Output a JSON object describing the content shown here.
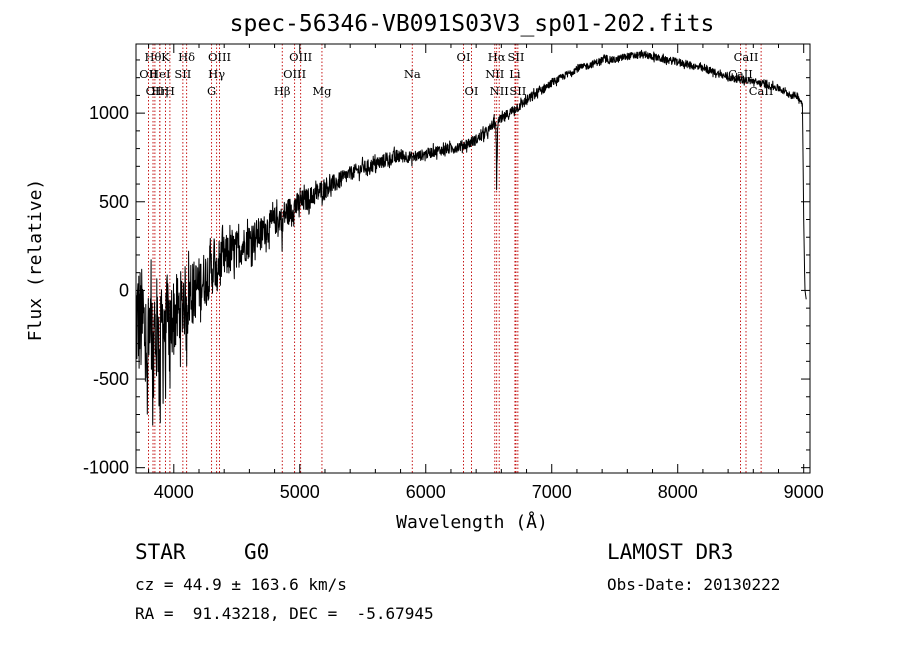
{
  "chart_data": {
    "type": "line",
    "title": "spec-56346-VB091S03V3_sp01-202.fits",
    "xlabel": "Wavelength (Å)",
    "ylabel": "Flux (relative)",
    "xlim": [
      3700,
      9050
    ],
    "ylim": [
      -1030,
      1390
    ],
    "xticks": [
      4000,
      5000,
      6000,
      7000,
      8000,
      9000
    ],
    "yticks": [
      -1000,
      -500,
      0,
      500,
      1000
    ],
    "spectrum_anchors": {
      "x": [
        3700,
        3750,
        3800,
        3850,
        3900,
        3950,
        4000,
        4050,
        4100,
        4200,
        4300,
        4400,
        4500,
        4600,
        4700,
        4800,
        4900,
        5000,
        5100,
        5200,
        5300,
        5400,
        5500,
        5600,
        5700,
        5800,
        5900,
        6000,
        6100,
        6200,
        6300,
        6400,
        6500,
        6550,
        6600,
        6700,
        6800,
        6900,
        7000,
        7100,
        7200,
        7300,
        7400,
        7500,
        7600,
        7700,
        7800,
        7900,
        8000,
        8100,
        8200,
        8300,
        8400,
        8500,
        8600,
        8700,
        8800,
        8900,
        8950,
        8990,
        9000,
        9010,
        9020
      ],
      "y": [
        -150,
        -200,
        -300,
        -250,
        -200,
        -160,
        -150,
        -100,
        -50,
        30,
        120,
        180,
        230,
        280,
        330,
        390,
        440,
        490,
        530,
        580,
        610,
        660,
        690,
        710,
        740,
        760,
        750,
        770,
        790,
        800,
        820,
        850,
        900,
        960,
        960,
        1020,
        1070,
        1120,
        1170,
        1210,
        1250,
        1270,
        1300,
        1300,
        1320,
        1330,
        1320,
        1300,
        1290,
        1270,
        1250,
        1230,
        1200,
        1190,
        1180,
        1160,
        1140,
        1100,
        1100,
        1050,
        400,
        0,
        -50
      ],
      "noise": [
        350,
        330,
        330,
        320,
        320,
        250,
        230,
        210,
        200,
        160,
        150,
        130,
        110,
        100,
        90,
        80,
        80,
        70,
        60,
        60,
        50,
        40,
        40,
        40,
        40,
        40,
        30,
        30,
        30,
        30,
        30,
        30,
        30,
        30,
        30,
        30,
        30,
        30,
        20,
        20,
        20,
        20,
        20,
        20,
        20,
        20,
        20,
        20,
        20,
        20,
        20,
        20,
        20,
        20,
        20,
        20,
        20,
        20,
        20,
        20,
        0,
        0,
        0
      ]
    },
    "spectrum_features": [
      {
        "x": 3790,
        "depth": 500
      },
      {
        "x": 3835,
        "depth": 500
      },
      {
        "x": 3890,
        "depth": 500
      },
      {
        "x": 3933,
        "depth": 300
      },
      {
        "x": 3968,
        "depth": 300
      },
      {
        "x": 4101,
        "depth": 200
      },
      {
        "x": 4340,
        "depth": 150
      },
      {
        "x": 4861,
        "depth": 120
      },
      {
        "x": 6563,
        "depth": 350
      },
      {
        "x": 6550,
        "depth": 100
      }
    ],
    "lines": [
      {
        "x": 3799,
        "label": "OII",
        "row": 2
      },
      {
        "x": 3835,
        "label": "Hθ",
        "row": 1
      },
      {
        "x": 3850,
        "label": "OII",
        "row": 3
      },
      {
        "x": 3889,
        "label": "HeI",
        "row": 2
      },
      {
        "x": 3889,
        "label": "Hη",
        "row": 3
      },
      {
        "x": 3934,
        "label": "K",
        "row": 1
      },
      {
        "x": 3969,
        "label": "H",
        "row": 3
      },
      {
        "x": 4072,
        "label": "SII",
        "row": 2
      },
      {
        "x": 4102,
        "label": "Hδ",
        "row": 1
      },
      {
        "x": 4300,
        "label": "G",
        "row": 3
      },
      {
        "x": 4340,
        "label": "Hγ",
        "row": 2
      },
      {
        "x": 4363,
        "label": "OIII",
        "row": 1
      },
      {
        "x": 4861,
        "label": "Hβ",
        "row": 3
      },
      {
        "x": 4959,
        "label": "OIII",
        "row": 2
      },
      {
        "x": 5007,
        "label": "OIII",
        "row": 1
      },
      {
        "x": 5176,
        "label": "Mg",
        "row": 3
      },
      {
        "x": 5893,
        "label": "Na",
        "row": 2
      },
      {
        "x": 6300,
        "label": "OI",
        "row": 1
      },
      {
        "x": 6363,
        "label": "OI",
        "row": 3
      },
      {
        "x": 6548,
        "label": "NII",
        "row": 2
      },
      {
        "x": 6563,
        "label": "Hα",
        "row": 1
      },
      {
        "x": 6583,
        "label": "NII",
        "row": 3
      },
      {
        "x": 6716,
        "label": "SII",
        "row": 1
      },
      {
        "x": 6708,
        "label": "Li",
        "row": 2
      },
      {
        "x": 6731,
        "label": "SII",
        "row": 3
      },
      {
        "x": 8498,
        "label": "CaII",
        "row": 2
      },
      {
        "x": 8542,
        "label": "CaII",
        "row": 1
      },
      {
        "x": 8662,
        "label": "CaII",
        "row": 3
      }
    ]
  },
  "info": {
    "class": "STAR",
    "subclass": "G0",
    "survey": "LAMOST DR3",
    "cz": "cz = 44.9 ± 163.6 km/s",
    "obs_date": "Obs-Date: 20130222",
    "coords": "RA =  91.43218, DEC =  -5.67945"
  },
  "colors": {
    "axis": "#000000",
    "spectrum": "#000000",
    "line_marker": "#c00000"
  }
}
